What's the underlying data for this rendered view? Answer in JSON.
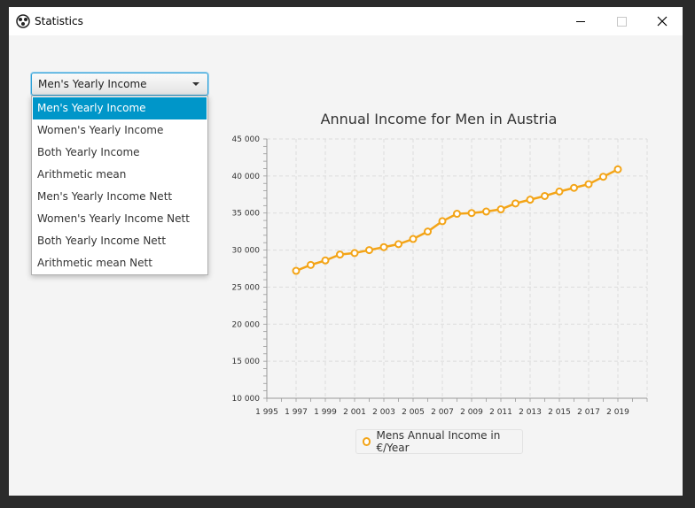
{
  "window": {
    "title": "Statistics",
    "icon": "app-logo-icon"
  },
  "controls": {
    "minimize": "minimize-icon",
    "maximize": "maximize-icon",
    "close": "close-icon"
  },
  "combo": {
    "selected": "Men's Yearly Income",
    "options": [
      "Men's Yearly Income",
      "Women's Yearly Income",
      "Both Yearly Income",
      "Arithmetic mean",
      "Men's Yearly Income Nett",
      "Women's Yearly Income Nett",
      "Both Yearly Income Nett",
      "Arithmetic mean Nett"
    ]
  },
  "colors": {
    "accent": "#0096c9",
    "series": "#f3a417"
  },
  "chart_data": {
    "type": "line",
    "title": "Annual Income for Men in Austria",
    "xlabel": "",
    "ylabel": "",
    "xlim": [
      1995,
      2021
    ],
    "ylim": [
      10000,
      45000
    ],
    "x_ticks": [
      "1 995",
      "1 997",
      "1 999",
      "2 001",
      "2 003",
      "2 005",
      "2 007",
      "2 009",
      "2 011",
      "2 013",
      "2 015",
      "2 017",
      "2 019"
    ],
    "y_ticks": [
      "10 000",
      "15 000",
      "20 000",
      "25 000",
      "30 000",
      "35 000",
      "40 000",
      "45 000"
    ],
    "grid": true,
    "legend": "bottom",
    "series": [
      {
        "name": "Mens Annual Income in €/Year",
        "x": [
          1997,
          1998,
          1999,
          2000,
          2001,
          2002,
          2003,
          2004,
          2005,
          2006,
          2007,
          2008,
          2009,
          2010,
          2011,
          2012,
          2013,
          2014,
          2015,
          2016,
          2017,
          2018,
          2019
        ],
        "y": [
          27200,
          28000,
          28600,
          29400,
          29600,
          30000,
          30400,
          30800,
          31500,
          32500,
          33900,
          34900,
          35000,
          35200,
          35500,
          36300,
          36800,
          37300,
          37900,
          38400,
          38900,
          39900,
          40900
        ]
      }
    ]
  }
}
